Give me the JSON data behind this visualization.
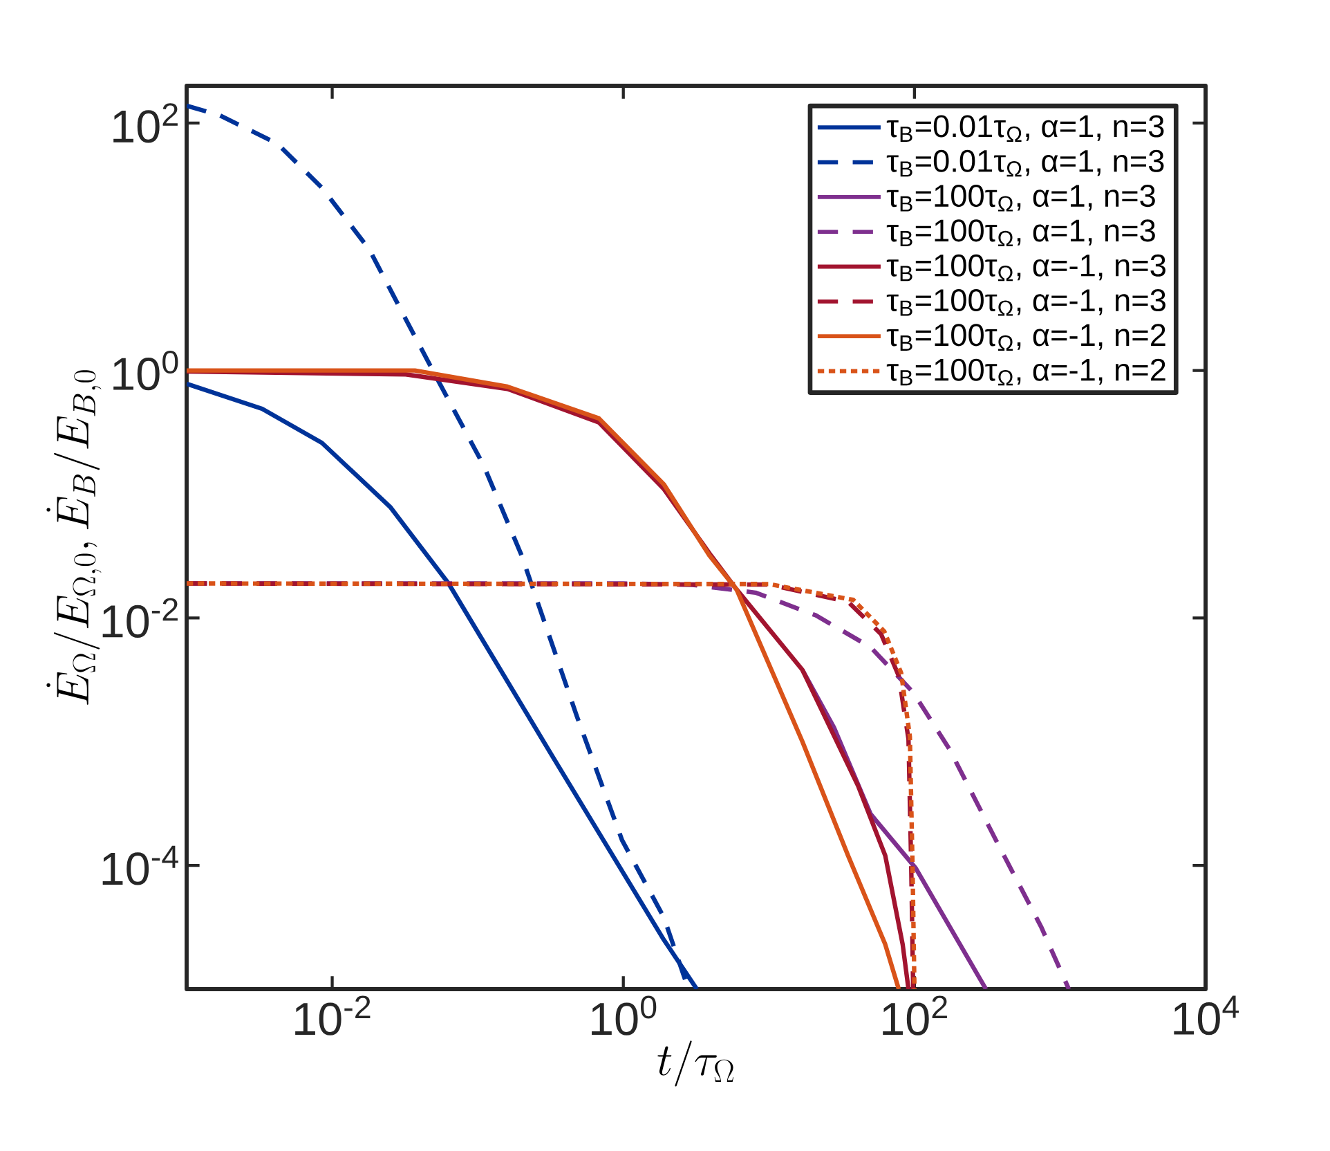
{
  "chart_data": {
    "type": "line",
    "xlabel": "t/\\tau_\\Omega",
    "ylabel": "\\dot{E}_\\Omega/E_{\\Omega,0}, \\dot{E}_B/E_{B,0}",
    "log": "xy",
    "xlim": [
      0.001,
      10000
    ],
    "ylim": [
      1e-05,
      200
    ],
    "xticks": [
      {
        "value": 0.01,
        "label": "10$^{-2}$"
      },
      {
        "value": 1,
        "label": "10$^{0}$"
      },
      {
        "value": 100,
        "label": "10$^{2}$"
      },
      {
        "value": 10000,
        "label": "10$^{4}$"
      }
    ],
    "yticks": [
      {
        "value": 0.0001,
        "label": "10$^{-4}$"
      },
      {
        "value": 0.01,
        "label": "10$^{-2}$"
      },
      {
        "value": 1,
        "label": "10$^{0}$"
      },
      {
        "value": 100,
        "label": "10$^{2}$"
      }
    ],
    "grid": false,
    "legend": "top right",
    "marker": "none",
    "series": [
      {
        "name": "τ$_{B}$=0.01τ$_{Ω}$, α=1, n=3",
        "color": "#003399",
        "line_style": "solid",
        "x": [
          0.001,
          0.0033,
          0.0085,
          0.025,
          0.063,
          0.32,
          1.9,
          3.2
        ],
        "values": [
          0.78,
          0.49,
          0.26,
          0.079,
          0.019,
          0.00079,
          2.5e-05,
          1e-05
        ]
      },
      {
        "name": "τ$_{B}$=0.01τ$_{Ω}$, α=1, n=3",
        "color": "#003399",
        "line_style": "dashed",
        "x": [
          0.001,
          0.0017,
          0.0042,
          0.0085,
          0.018,
          0.032,
          0.054,
          0.11,
          0.2,
          0.48,
          0.98,
          1.9,
          2.8
        ],
        "values": [
          138,
          115,
          68,
          30,
          9.5,
          2.6,
          0.81,
          0.17,
          0.032,
          0.0016,
          0.00016,
          3.8e-05,
          1e-05
        ]
      },
      {
        "name": "τ$_{B}$=100τ$_{Ω}$, α=1, n=3",
        "color": "#7e2f8e",
        "line_style": "solid",
        "x": [
          17,
          28,
          50,
          102,
          310
        ],
        "values": [
          0.0038,
          0.0013,
          0.00026,
          9.5e-05,
          1e-05
        ]
      },
      {
        "name": "τ$_{B}$=100τ$_{Ω}$, α=1, n=3",
        "color": "#7e2f8e",
        "line_style": "dashed",
        "x": [
          0.001,
          1,
          3,
          8.1,
          21,
          50,
          98,
          174,
          363,
          741,
          1150
        ],
        "values": [
          0.019,
          0.019,
          0.0185,
          0.016,
          0.0105,
          0.0058,
          0.0025,
          0.00087,
          0.00016,
          3.2e-05,
          1e-05
        ]
      },
      {
        "name": "τ$_{B}$=100τ$_{Ω}$, α=-1, n=3",
        "color": "#a2142f",
        "line_style": "solid",
        "x": [
          0.001,
          0.032,
          0.16,
          0.68,
          1.9,
          4,
          6,
          17,
          41,
          63,
          83,
          91
        ],
        "values": [
          0.98,
          0.93,
          0.71,
          0.38,
          0.11,
          0.032,
          0.017,
          0.0038,
          0.00044,
          0.00012,
          2.3e-05,
          1e-05
        ]
      },
      {
        "name": "τ$_{B}$=100τ$_{Ω}$, α=-1, n=3",
        "color": "#a2142f",
        "line_style": "dashed",
        "x": [
          0.001,
          10,
          35,
          59,
          78,
          91,
          95,
          98
        ],
        "values": [
          0.019,
          0.0186,
          0.0135,
          0.0074,
          0.0034,
          0.00105,
          0.0001,
          1e-05
        ]
      },
      {
        "name": "τ$_{B}$=100τ$_{Ω}$, α=-1, n=2",
        "color": "#d95319",
        "line_style": "solid",
        "x": [
          0.001,
          0.037,
          0.16,
          0.68,
          1.9,
          3.9,
          6,
          17,
          35,
          63,
          78
        ],
        "values": [
          1,
          1,
          0.74,
          0.41,
          0.12,
          0.032,
          0.017,
          0.001,
          0.00012,
          2.3e-05,
          1e-05
        ]
      },
      {
        "name": "τ$_{B}$=100τ$_{Ω}$, α=-1, n=2",
        "color": "#d95319",
        "line_style": "dotted",
        "x": [
          0.001,
          10,
          38,
          62,
          81,
          93,
          97,
          100
        ],
        "values": [
          0.019,
          0.0188,
          0.014,
          0.0078,
          0.0036,
          0.0011,
          0.0001,
          1e-05
        ]
      }
    ]
  }
}
